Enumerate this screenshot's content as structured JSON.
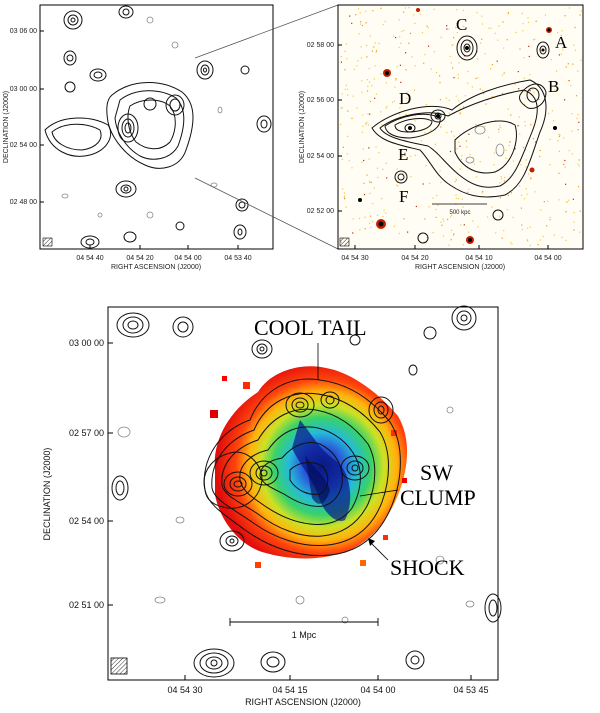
{
  "panel_a": {
    "y_ticks": [
      "03 06 00",
      "03 00 00",
      "02 54 00",
      "02 48 00"
    ],
    "x_ticks": [
      "04 54 40",
      "04 54 20",
      "04 54 00",
      "04 53 40"
    ],
    "x_label": "RIGHT ASCENSION (J2000)",
    "y_label": "DECLINATION (J2000)"
  },
  "panel_b": {
    "y_ticks": [
      "02 58 00",
      "02 56 00",
      "02 54 00",
      "02 52 00"
    ],
    "x_ticks": [
      "04 54 30",
      "04 54 20",
      "04 54 10",
      "04 54 00"
    ],
    "x_label": "RIGHT ASCENSION (J2000)",
    "y_label": "DECLINATION (J2000)",
    "labels": [
      "A",
      "B",
      "C",
      "D",
      "E",
      "F"
    ],
    "scale_label": "500 kpc"
  },
  "panel_c": {
    "y_ticks": [
      "03 00 00",
      "02 57 00",
      "02 54 00",
      "02 51 00"
    ],
    "x_ticks": [
      "04 54 30",
      "04 54 15",
      "04 54 00",
      "04 53 45"
    ],
    "x_label": "RIGHT ASCENSION (J2000)",
    "y_label": "DECLINATION (J2000)",
    "annotations": {
      "cool_tail": "COOL TAIL",
      "sw": "SW",
      "clump": "CLUMP",
      "shock": "SHOCK"
    },
    "scale_label": "1 Mpc"
  }
}
